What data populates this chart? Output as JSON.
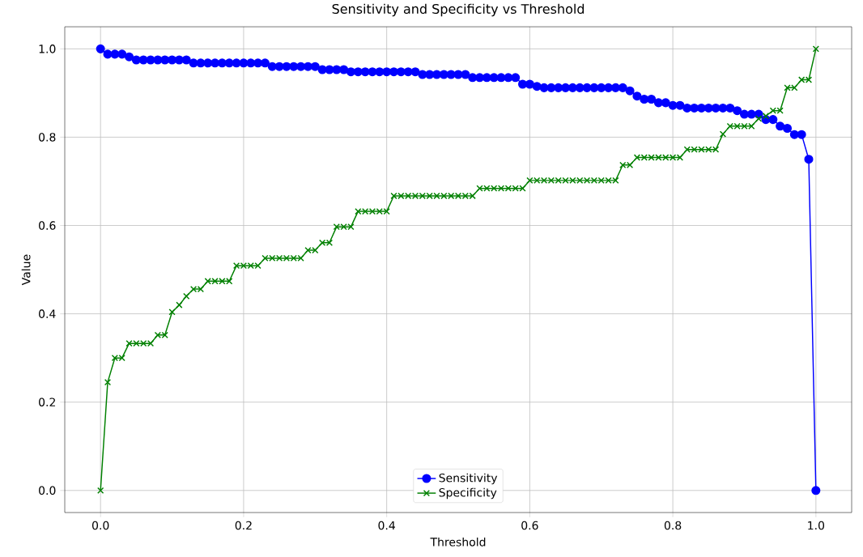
{
  "chart_data": {
    "type": "line",
    "title": "Sensitivity and Specificity vs Threshold",
    "xlabel": "Threshold",
    "ylabel": "Value",
    "x": [
      0,
      0.01,
      0.02,
      0.03,
      0.04,
      0.05,
      0.06,
      0.07,
      0.08,
      0.09,
      0.1,
      0.11,
      0.12,
      0.13,
      0.14,
      0.15,
      0.16,
      0.17,
      0.18,
      0.19,
      0.2,
      0.21,
      0.22,
      0.23,
      0.24,
      0.25,
      0.26,
      0.27,
      0.28,
      0.29,
      0.3,
      0.31,
      0.32,
      0.33,
      0.34,
      0.35,
      0.36,
      0.37,
      0.38,
      0.39,
      0.4,
      0.41,
      0.42,
      0.43,
      0.44,
      0.45,
      0.46,
      0.47,
      0.48,
      0.49,
      0.5,
      0.51,
      0.52,
      0.53,
      0.54,
      0.55,
      0.56,
      0.57,
      0.58,
      0.59,
      0.6,
      0.61,
      0.62,
      0.63,
      0.64,
      0.65,
      0.66,
      0.67,
      0.68,
      0.69,
      0.7,
      0.71,
      0.72,
      0.73,
      0.74,
      0.75,
      0.76,
      0.77,
      0.78,
      0.79,
      0.8,
      0.81,
      0.82,
      0.83,
      0.84,
      0.85,
      0.86,
      0.87,
      0.88,
      0.89,
      0.9,
      0.91,
      0.92,
      0.93,
      0.94,
      0.95,
      0.96,
      0.97,
      0.98,
      0.99,
      1
    ],
    "series": [
      {
        "name": "Sensitivity",
        "color": "#0000ff",
        "marker": "circle",
        "values": [
          1.0,
          0.988,
          0.988,
          0.988,
          0.982,
          0.975,
          0.975,
          0.975,
          0.975,
          0.975,
          0.975,
          0.975,
          0.975,
          0.968,
          0.968,
          0.968,
          0.968,
          0.968,
          0.968,
          0.968,
          0.968,
          0.968,
          0.968,
          0.968,
          0.96,
          0.96,
          0.96,
          0.96,
          0.96,
          0.96,
          0.96,
          0.953,
          0.953,
          0.953,
          0.953,
          0.948,
          0.948,
          0.948,
          0.948,
          0.948,
          0.948,
          0.948,
          0.948,
          0.948,
          0.948,
          0.942,
          0.942,
          0.942,
          0.942,
          0.942,
          0.942,
          0.942,
          0.935,
          0.935,
          0.935,
          0.935,
          0.935,
          0.935,
          0.935,
          0.92,
          0.92,
          0.915,
          0.912,
          0.912,
          0.912,
          0.912,
          0.912,
          0.912,
          0.912,
          0.912,
          0.912,
          0.912,
          0.912,
          0.912,
          0.905,
          0.893,
          0.886,
          0.886,
          0.878,
          0.878,
          0.872,
          0.872,
          0.866,
          0.866,
          0.866,
          0.866,
          0.866,
          0.866,
          0.866,
          0.86,
          0.852,
          0.852,
          0.852,
          0.84,
          0.84,
          0.825,
          0.82,
          0.806,
          0.806,
          0.75,
          0.0
        ]
      },
      {
        "name": "Specificity",
        "color": "#008000",
        "marker": "cross",
        "values": [
          0.0,
          0.245,
          0.3,
          0.3,
          0.333,
          0.333,
          0.333,
          0.333,
          0.352,
          0.352,
          0.404,
          0.42,
          0.44,
          0.456,
          0.456,
          0.474,
          0.474,
          0.474,
          0.474,
          0.509,
          0.509,
          0.509,
          0.509,
          0.526,
          0.526,
          0.526,
          0.526,
          0.526,
          0.526,
          0.544,
          0.544,
          0.561,
          0.561,
          0.597,
          0.597,
          0.597,
          0.632,
          0.632,
          0.632,
          0.632,
          0.632,
          0.667,
          0.667,
          0.667,
          0.667,
          0.667,
          0.667,
          0.667,
          0.667,
          0.667,
          0.667,
          0.667,
          0.667,
          0.684,
          0.684,
          0.684,
          0.684,
          0.684,
          0.684,
          0.684,
          0.702,
          0.702,
          0.702,
          0.702,
          0.702,
          0.702,
          0.702,
          0.702,
          0.702,
          0.702,
          0.702,
          0.702,
          0.702,
          0.737,
          0.737,
          0.754,
          0.754,
          0.754,
          0.754,
          0.754,
          0.754,
          0.754,
          0.772,
          0.772,
          0.772,
          0.772,
          0.772,
          0.807,
          0.825,
          0.825,
          0.825,
          0.825,
          0.842,
          0.848,
          0.86,
          0.86,
          0.912,
          0.912,
          0.93,
          0.93,
          1.0
        ]
      }
    ],
    "xlim": [
      -0.05,
      1.05
    ],
    "ylim": [
      -0.05,
      1.05
    ],
    "xticks": [
      {
        "value": 0,
        "label": "0.0"
      },
      0.2,
      0.4,
      0.6,
      0.8,
      {
        "value": 1,
        "label": "1.0"
      }
    ],
    "yticks": [
      {
        "value": 0,
        "label": "0.0"
      },
      0.2,
      0.4,
      0.6,
      0.8,
      {
        "value": 1,
        "label": "1.0"
      }
    ],
    "grid": true,
    "legend": "bottom",
    "line_style": "solid"
  }
}
